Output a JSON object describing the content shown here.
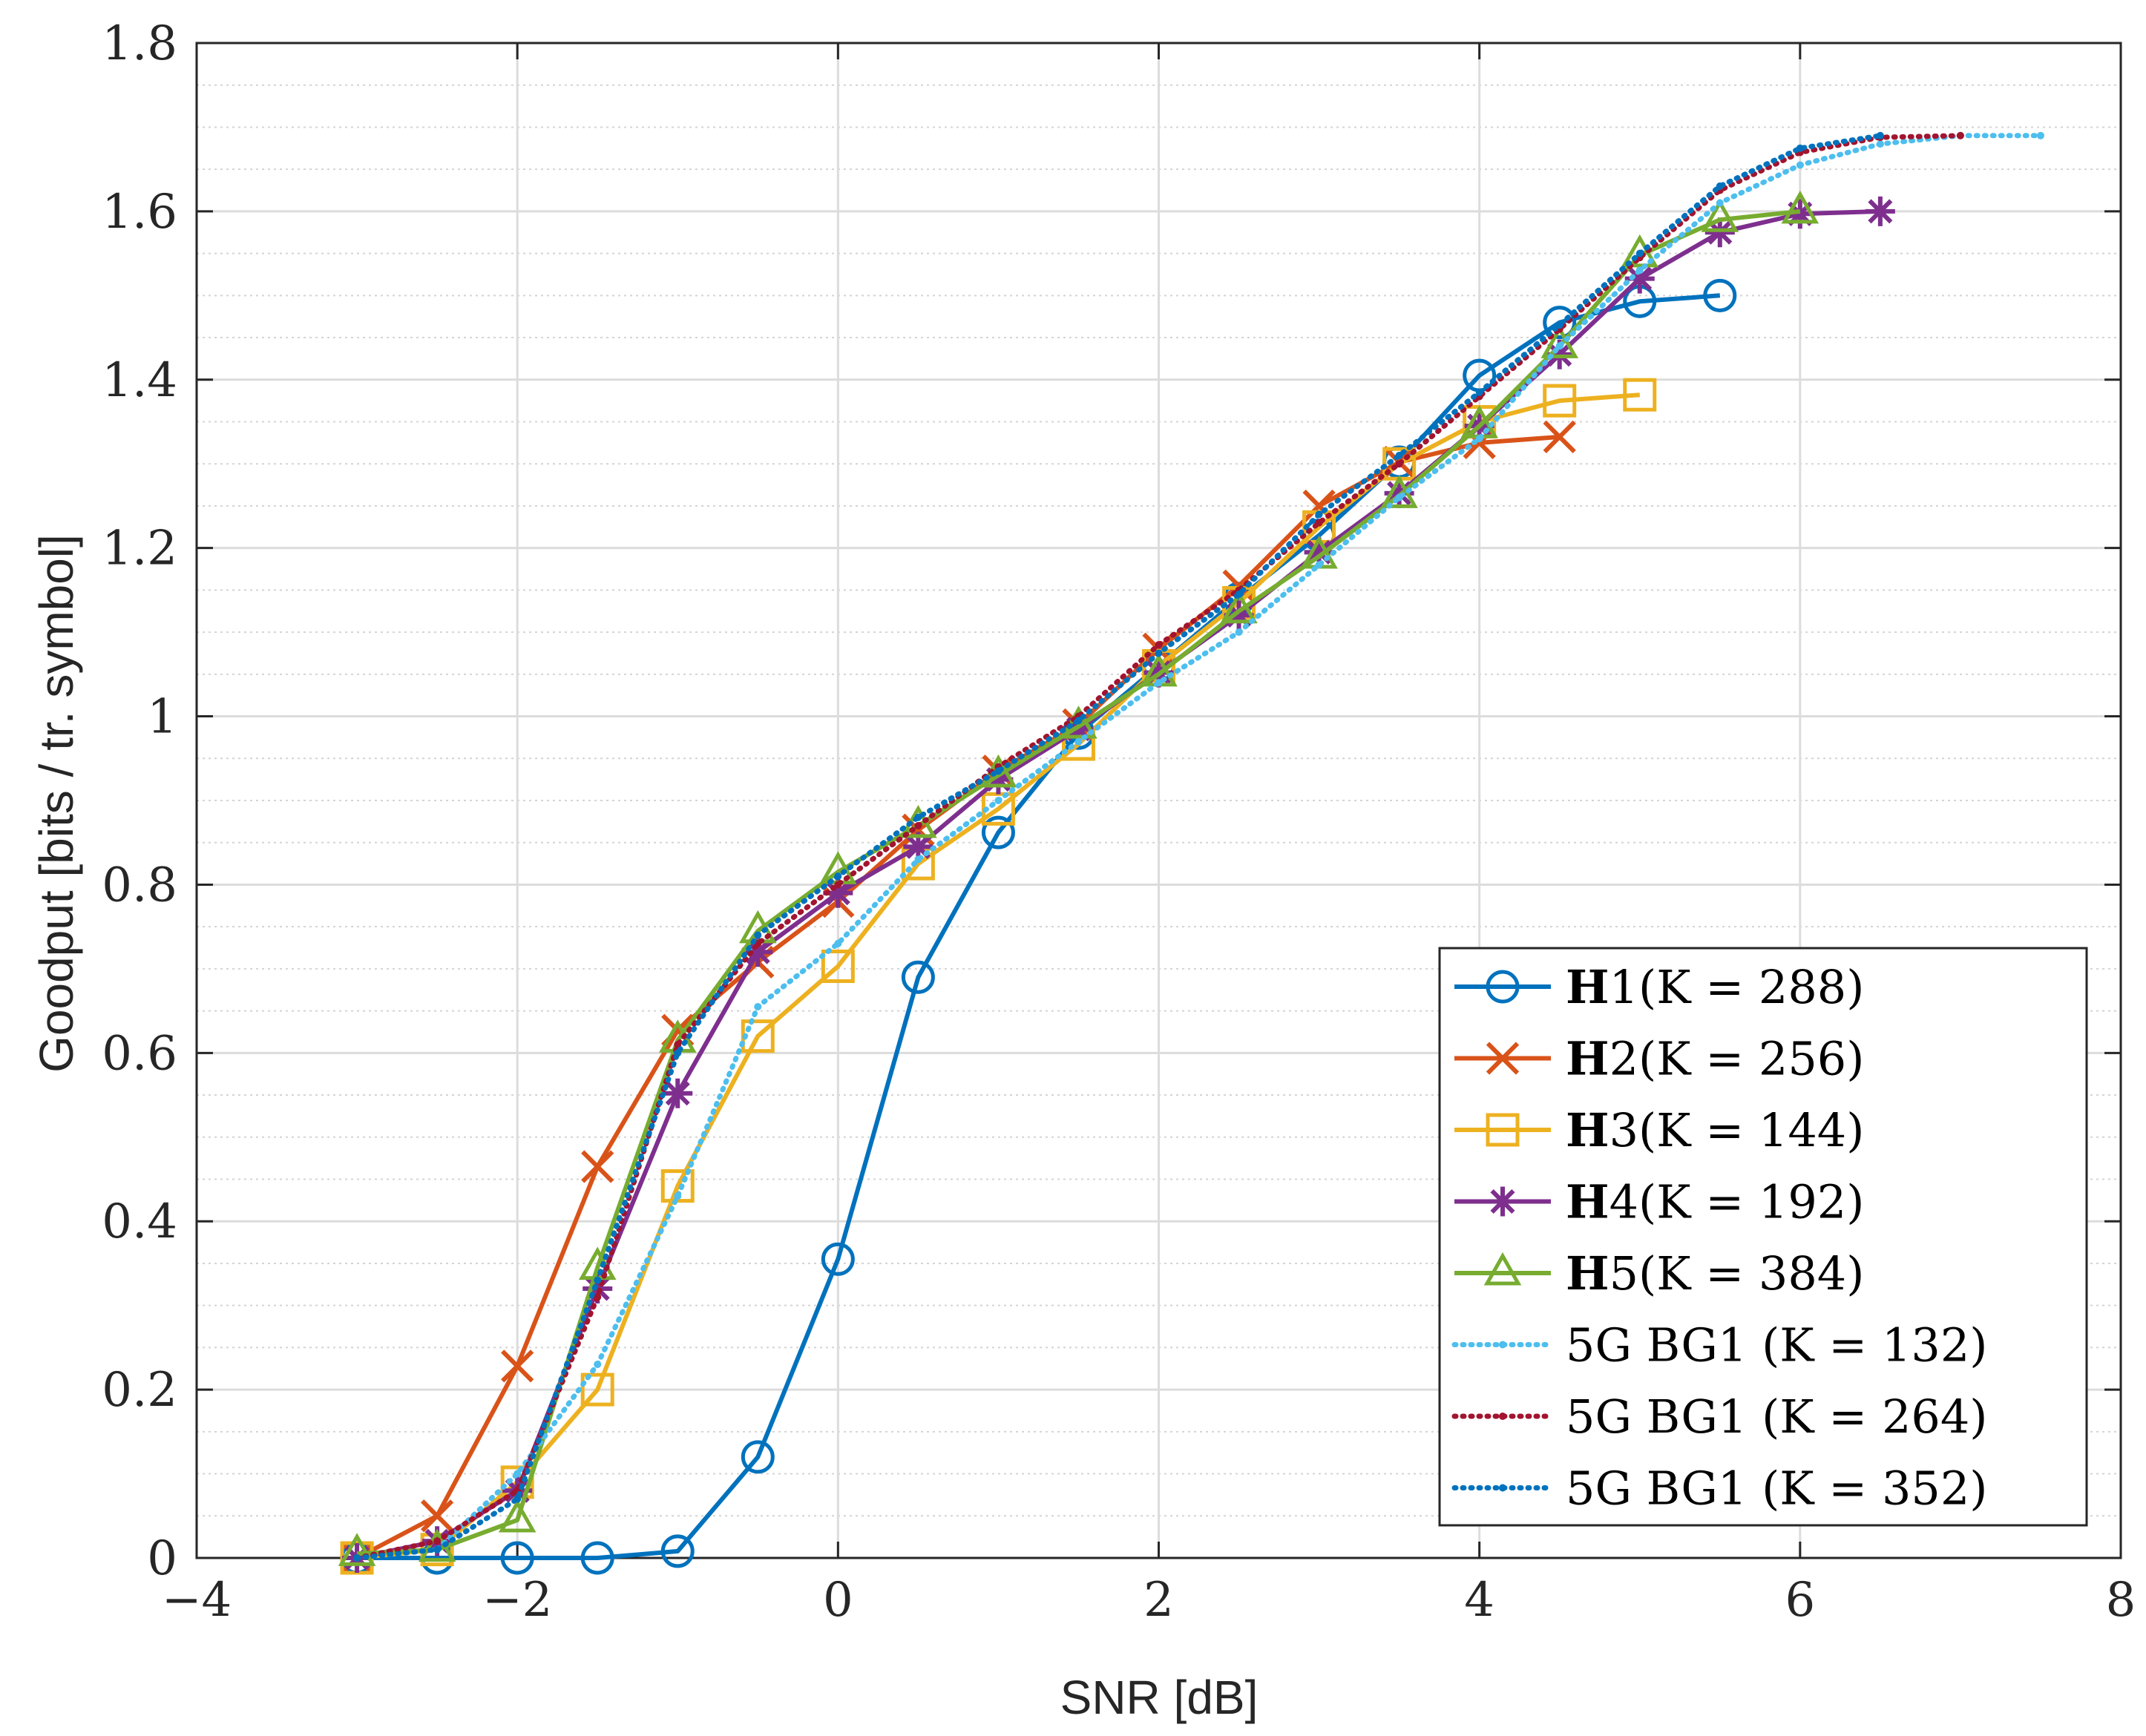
{
  "chart_data": {
    "type": "line",
    "title": "",
    "xlabel": "SNR [dB]",
    "ylabel": "Goodput [bits / tr. symbol]",
    "xlim": [
      -4,
      8
    ],
    "ylim": [
      0,
      1.8
    ],
    "xticks": [
      -4,
      -2,
      0,
      2,
      4,
      6,
      8
    ],
    "xtick_labels": [
      "−4",
      "−2",
      "0",
      "2",
      "4",
      "6",
      "8"
    ],
    "yticks": [
      0,
      0.2,
      0.4,
      0.6,
      0.8,
      1,
      1.2,
      1.4,
      1.6,
      1.8
    ],
    "ytick_labels": [
      "0",
      "0.2",
      "0.4",
      "0.6",
      "0.8",
      "1",
      "1.2",
      "1.4",
      "1.6",
      "1.8"
    ],
    "grid": true,
    "minor_grid_y": true,
    "legend_position": "bottom-right",
    "series": [
      {
        "name": "H1(K = 288)",
        "label_bold": "H",
        "label_rest": "1(K = 288)",
        "color": "#0072BD",
        "marker": "circle",
        "style": "solid",
        "x": [
          -3,
          -2.5,
          -2,
          -1.5,
          -1,
          -0.5,
          0,
          0.5,
          1,
          1.5,
          2,
          2.5,
          3,
          3.5,
          4,
          4.5,
          5,
          5.5
        ],
        "y": [
          0,
          0,
          0,
          0,
          0.008,
          0.12,
          0.355,
          0.69,
          0.862,
          0.98,
          1.06,
          1.14,
          1.215,
          1.302,
          1.405,
          1.468,
          1.493,
          1.5
        ]
      },
      {
        "name": "H2(K = 256)",
        "label_bold": "H",
        "label_rest": "2(K = 256)",
        "color": "#D95319",
        "marker": "x",
        "style": "solid",
        "x": [
          -3,
          -2.5,
          -2,
          -1.5,
          -1,
          -0.5,
          0,
          0.5,
          1,
          1.5,
          2,
          2.5,
          3,
          3.5,
          4,
          4.5
        ],
        "y": [
          0,
          0.05,
          0.228,
          0.465,
          0.627,
          0.708,
          0.78,
          0.865,
          0.935,
          0.99,
          1.08,
          1.155,
          1.25,
          1.302,
          1.325,
          1.332
        ]
      },
      {
        "name": "H3(K = 144)",
        "label_bold": "H",
        "label_rest": "3(K = 144)",
        "color": "#EDB120",
        "marker": "square",
        "style": "solid",
        "x": [
          -3,
          -2.5,
          -2,
          -1.5,
          -1,
          -0.5,
          0,
          0.5,
          1,
          1.5,
          2,
          2.5,
          3,
          3.5,
          4,
          4.5,
          5
        ],
        "y": [
          0,
          0.01,
          0.09,
          0.2,
          0.442,
          0.62,
          0.703,
          0.825,
          0.89,
          0.967,
          1.06,
          1.135,
          1.225,
          1.3,
          1.35,
          1.375,
          1.382
        ]
      },
      {
        "name": "H4(K = 192)",
        "label_bold": "H",
        "label_rest": "4(K = 192)",
        "color": "#7E2F8E",
        "marker": "star",
        "style": "solid",
        "x": [
          -3,
          -2.5,
          -2,
          -1.5,
          -1,
          -0.5,
          0,
          0.5,
          1,
          1.5,
          2,
          2.5,
          3,
          3.5,
          4,
          4.5,
          5,
          5.5,
          6,
          6.5
        ],
        "y": [
          0,
          0.02,
          0.08,
          0.32,
          0.552,
          0.72,
          0.79,
          0.845,
          0.925,
          0.985,
          1.052,
          1.12,
          1.195,
          1.265,
          1.345,
          1.43,
          1.52,
          1.575,
          1.597,
          1.6
        ]
      },
      {
        "name": "H5(K = 384)",
        "label_bold": "H",
        "label_rest": "5(K = 384)",
        "color": "#77AC30",
        "marker": "triangle",
        "style": "solid",
        "x": [
          -3,
          -2.5,
          -2,
          -1.5,
          -1,
          -0.5,
          0,
          0.5,
          1,
          1.5,
          2,
          2.5,
          3,
          3.5,
          4,
          4.5,
          5,
          5.5,
          6
        ],
        "y": [
          0.005,
          0.01,
          0.045,
          0.345,
          0.615,
          0.745,
          0.815,
          0.87,
          0.93,
          0.988,
          1.05,
          1.125,
          1.19,
          1.262,
          1.345,
          1.44,
          1.548,
          1.59,
          1.6
        ]
      },
      {
        "name": "5G BG1 (K = 132)",
        "label_bold": "",
        "label_rest": "5G BG1 (K = 132)",
        "color": "#4DBEEE",
        "marker": "dot",
        "style": "dotted",
        "x": [
          -3,
          -2.5,
          -2,
          -1.5,
          -1,
          -0.5,
          0,
          0.5,
          1,
          1.5,
          2,
          2.5,
          3,
          3.5,
          4,
          4.5,
          5,
          5.5,
          6,
          6.5,
          7,
          7.5
        ],
        "y": [
          0,
          0.01,
          0.1,
          0.23,
          0.43,
          0.655,
          0.73,
          0.83,
          0.9,
          0.97,
          1.04,
          1.1,
          1.18,
          1.26,
          1.33,
          1.44,
          1.53,
          1.61,
          1.655,
          1.68,
          1.69,
          1.69
        ]
      },
      {
        "name": "5G BG1 (K = 264)",
        "label_bold": "",
        "label_rest": "5G BG1 (K = 264)",
        "color": "#A2142F",
        "marker": "dot",
        "style": "dotted",
        "x": [
          -3,
          -2.5,
          -2,
          -1.5,
          -1,
          -0.5,
          0,
          0.5,
          1,
          1.5,
          2,
          2.5,
          3,
          3.5,
          4,
          4.5,
          5,
          5.5,
          6,
          6.5,
          7
        ],
        "y": [
          0,
          0.02,
          0.08,
          0.31,
          0.61,
          0.73,
          0.8,
          0.87,
          0.94,
          1.0,
          1.085,
          1.15,
          1.23,
          1.3,
          1.38,
          1.46,
          1.545,
          1.625,
          1.67,
          1.688,
          1.69
        ]
      },
      {
        "name": "5G BG1 (K = 352)",
        "label_bold": "",
        "label_rest": "5G BG1 (K = 352)",
        "color": "#0072BD",
        "marker": "dot",
        "style": "dotted",
        "x": [
          -3,
          -2.5,
          -2,
          -1.5,
          -1,
          -0.5,
          0,
          0.5,
          1,
          1.5,
          2,
          2.5,
          3,
          3.5,
          4,
          4.5,
          5,
          5.5,
          6,
          6.5
        ],
        "y": [
          0,
          0.01,
          0.07,
          0.33,
          0.6,
          0.74,
          0.81,
          0.88,
          0.935,
          0.995,
          1.075,
          1.145,
          1.24,
          1.31,
          1.385,
          1.465,
          1.55,
          1.63,
          1.675,
          1.69
        ]
      }
    ]
  }
}
